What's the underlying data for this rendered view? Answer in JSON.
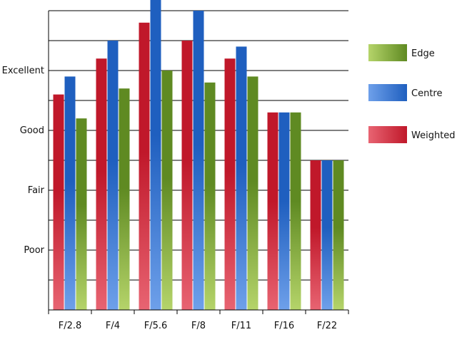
{
  "chart_data": {
    "type": "bar",
    "title": "",
    "xlabel": "",
    "ylabel": "",
    "categories": [
      "F/2.8",
      "F/4",
      "F/5.6",
      "F/8",
      "F/11",
      "F/16",
      "F/22"
    ],
    "y_tick_labels": [
      {
        "label": "Poor",
        "value": 1
      },
      {
        "label": "Fair",
        "value": 2
      },
      {
        "label": "Good",
        "value": 3
      },
      {
        "label": "Excellent",
        "value": 4
      }
    ],
    "ylim": [
      0,
      5
    ],
    "grid_step": 0.5,
    "grid": true,
    "legend_position": "right",
    "series": [
      {
        "name": "Weighted",
        "values": [
          3.6,
          4.2,
          4.8,
          4.5,
          4.2,
          3.3,
          2.5
        ],
        "color": "#c0182a",
        "color_light": "#e86472"
      },
      {
        "name": "Centre",
        "values": [
          3.9,
          4.5,
          5.3,
          5.0,
          4.4,
          3.3,
          2.5
        ],
        "color": "#1f5fbf",
        "color_light": "#6ea0ea"
      },
      {
        "name": "Edge",
        "values": [
          3.2,
          3.7,
          4.0,
          3.8,
          3.9,
          3.3,
          2.5
        ],
        "color": "#5f8a22",
        "color_light": "#b5d46a"
      }
    ],
    "legend_order": [
      "Edge",
      "Centre",
      "Weighted"
    ]
  }
}
